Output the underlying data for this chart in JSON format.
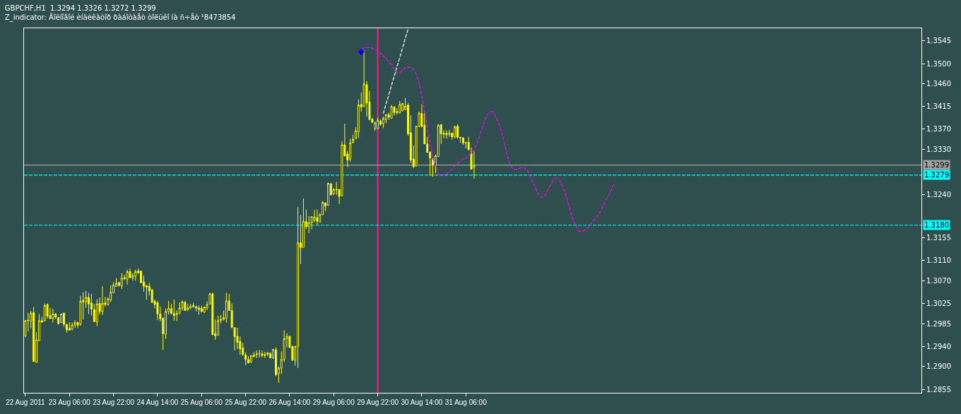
{
  "chart_data": {
    "type": "candlestick",
    "title": "GBPCHF,H1  1.3294 1.3326 1.3272 1.3299",
    "subtitle": "Z_indicator: Âîëíîâîé èíäèêàòîð ðàáîòàåò òîëüêî íà ñ÷åò ¹8473854",
    "categories": [
      "22 Aug 2011",
      null,
      null,
      null,
      null,
      null,
      null,
      null,
      null,
      null,
      null,
      null,
      null,
      null,
      null,
      null,
      "23 Aug 06:00",
      null,
      null,
      null,
      null,
      null,
      null,
      null,
      null,
      null,
      null,
      null,
      null,
      null,
      null,
      null,
      "23 Aug 22:00",
      null,
      null,
      null,
      null,
      null,
      null,
      null,
      null,
      null,
      null,
      null,
      null,
      null,
      null,
      null,
      "24 Aug 14:00",
      null,
      null,
      null,
      null,
      null,
      null,
      null,
      null,
      null,
      null,
      null,
      null,
      null,
      null,
      null,
      "25 Aug 06:00",
      null,
      null,
      null,
      null,
      null,
      null,
      null,
      null,
      null,
      null,
      null,
      null,
      null,
      null,
      null,
      "25 Aug 22:00",
      null,
      null,
      null,
      null,
      null,
      null,
      null,
      null,
      null,
      null,
      null,
      null,
      null,
      null,
      null,
      "26 Aug 14:00",
      null,
      null,
      null,
      null,
      null,
      null,
      null,
      null,
      null,
      null,
      null,
      null,
      null,
      null,
      null,
      "29 Aug 06:00",
      null,
      null,
      null,
      null,
      null,
      null,
      null,
      null,
      null,
      null,
      null,
      null,
      null,
      null,
      null,
      "29 Aug 22:00",
      null,
      null,
      null,
      null,
      null,
      null,
      null,
      null,
      null,
      null,
      null,
      null,
      null,
      null,
      null,
      "30 Aug 14:00",
      null,
      null,
      null,
      null,
      null,
      null,
      null,
      null,
      null,
      null,
      null,
      null,
      null,
      null,
      null,
      "31 Aug 06:00",
      null,
      null,
      null,
      null,
      null,
      null,
      null,
      null,
      null,
      null,
      null,
      null,
      null,
      null,
      null,
      null,
      null,
      null,
      null,
      null,
      null,
      null,
      null,
      null,
      null,
      null,
      null,
      null,
      null,
      null,
      null,
      null,
      null,
      null,
      null,
      null,
      null,
      null,
      null,
      null,
      null,
      null,
      null,
      null,
      null,
      null,
      null,
      null,
      null,
      null,
      null,
      null,
      null,
      null,
      null,
      null,
      null,
      null,
      null,
      null,
      null,
      null,
      null,
      null,
      null,
      null,
      null,
      null,
      null,
      null,
      null,
      null,
      null,
      null,
      null,
      null,
      null,
      null,
      null,
      null,
      null,
      null,
      null,
      null,
      null,
      null,
      null,
      null,
      null,
      null,
      null,
      null,
      null,
      null,
      null,
      null,
      null,
      null,
      null,
      null,
      null,
      null,
      null,
      null,
      null,
      null,
      null,
      null,
      null,
      null,
      null,
      null,
      null,
      null,
      null,
      null,
      null,
      null,
      null,
      null,
      null,
      null,
      null,
      null,
      null,
      null,
      null,
      null,
      null,
      null,
      null,
      null,
      null,
      null,
      null,
      null,
      null,
      null,
      null,
      null,
      null,
      null,
      null,
      null,
      null,
      null,
      null,
      null,
      null,
      null,
      null,
      null,
      null,
      null,
      null,
      null,
      null,
      null,
      null,
      null,
      null,
      null,
      null,
      null,
      null
    ],
    "ohlc": [
      [
        1.2961,
        1.2992,
        1.2958,
        1.2991
      ],
      [
        1.2992,
        1.3006,
        1.297,
        1.2991
      ],
      [
        1.299,
        1.301,
        1.2976,
        1.3006
      ],
      [
        1.3007,
        1.3018,
        1.291,
        1.291
      ],
      [
        1.2908,
        1.2968,
        1.2908,
        1.2953
      ],
      [
        1.2951,
        1.3004,
        1.2951,
        1.2991
      ],
      [
        1.2991,
        1.2998,
        1.2987,
        1.2988
      ],
      [
        1.2991,
        1.3025,
        1.2989,
        1.3021
      ],
      [
        1.3023,
        1.3025,
        1.2995,
        1.3
      ],
      [
        1.3001,
        1.3016,
        1.2995,
        1.2995
      ],
      [
        1.2995,
        1.3015,
        1.2987,
        1.3004
      ],
      [
        1.3004,
        1.3006,
        1.2994,
        1.2998
      ],
      [
        1.2997,
        1.2998,
        1.2983,
        1.2985
      ],
      [
        1.2987,
        1.3005,
        1.2987,
        1.3004
      ],
      [
        1.3006,
        1.3006,
        1.2979,
        1.2984
      ],
      [
        1.2983,
        1.2985,
        1.2967,
        1.2973
      ],
      [
        1.2976,
        1.2988,
        1.2972,
        1.2972
      ],
      [
        1.2974,
        1.2987,
        1.2972,
        1.2982
      ],
      [
        1.2982,
        1.2992,
        1.2977,
        1.2987
      ],
      [
        1.2987,
        1.2989,
        1.2976,
        1.2982
      ],
      [
        1.2984,
        1.304,
        1.2981,
        1.3029
      ],
      [
        1.3031,
        1.3047,
        1.2993,
        1.3028
      ],
      [
        1.3028,
        1.305,
        1.3016,
        1.3037
      ],
      [
        1.3037,
        1.3046,
        1.3004,
        1.3024
      ],
      [
        1.3026,
        1.3044,
        1.3001,
        1.3014
      ],
      [
        1.3013,
        1.3024,
        1.2989,
        1.2989
      ],
      [
        1.2988,
        1.3033,
        1.298,
        1.3024
      ],
      [
        1.3025,
        1.3037,
        1.3003,
        1.3009
      ],
      [
        1.3009,
        1.3059,
        1.3002,
        1.3025
      ],
      [
        1.3026,
        1.3038,
        1.3019,
        1.3023
      ],
      [
        1.3022,
        1.3037,
        1.3022,
        1.3034
      ],
      [
        1.3032,
        1.3061,
        1.3028,
        1.3047
      ],
      [
        1.3046,
        1.3067,
        1.3046,
        1.3061
      ],
      [
        1.3059,
        1.3075,
        1.3058,
        1.3065
      ],
      [
        1.3066,
        1.3068,
        1.3058,
        1.3061
      ],
      [
        1.306,
        1.3085,
        1.3054,
        1.3075
      ],
      [
        1.3076,
        1.3082,
        1.3071,
        1.3074
      ],
      [
        1.3073,
        1.3092,
        1.3062,
        1.3088
      ],
      [
        1.3088,
        1.3094,
        1.3075,
        1.3076
      ],
      [
        1.3075,
        1.3085,
        1.307,
        1.308
      ],
      [
        1.3079,
        1.3092,
        1.307,
        1.3088
      ],
      [
        1.3089,
        1.3094,
        1.3083,
        1.3086
      ],
      [
        1.3089,
        1.3089,
        1.3065,
        1.3066
      ],
      [
        1.3068,
        1.308,
        1.3048,
        1.3059
      ],
      [
        1.306,
        1.3062,
        1.3032,
        1.3057
      ],
      [
        1.3059,
        1.3066,
        1.3041,
        1.305
      ],
      [
        1.3052,
        1.3054,
        1.3027,
        1.3027
      ],
      [
        1.3029,
        1.3033,
        1.3015,
        1.3023
      ],
      [
        1.3026,
        1.303,
        1.2992,
        1.3004
      ],
      [
        1.3004,
        1.3019,
        1.2989,
        1.2995
      ],
      [
        1.2996,
        1.2996,
        1.2933,
        1.2965
      ],
      [
        1.2964,
        1.3015,
        1.2955,
        1.3009
      ],
      [
        1.3009,
        1.303,
        1.3003,
        1.3015
      ],
      [
        1.3015,
        1.3024,
        1.3004,
        1.3005
      ],
      [
        1.3005,
        1.3033,
        1.2991,
        1.3001
      ],
      [
        1.3003,
        1.3011,
        1.299,
        1.3005
      ],
      [
        1.3005,
        1.3027,
        1.3004,
        1.3016
      ],
      [
        1.3016,
        1.3031,
        1.3011,
        1.3028
      ],
      [
        1.3027,
        1.303,
        1.3011,
        1.3011
      ],
      [
        1.3013,
        1.3024,
        1.301,
        1.3016
      ],
      [
        1.3016,
        1.3024,
        1.3014,
        1.3019
      ],
      [
        1.3021,
        1.3026,
        1.3016,
        1.3019
      ],
      [
        1.3018,
        1.3021,
        1.3009,
        1.3016
      ],
      [
        1.3016,
        1.3021,
        1.3003,
        1.3013
      ],
      [
        1.3015,
        1.302,
        1.3007,
        1.3009
      ],
      [
        1.3008,
        1.3018,
        1.3006,
        1.3018
      ],
      [
        1.3016,
        1.3029,
        1.3012,
        1.3023
      ],
      [
        1.3024,
        1.3046,
        1.3023,
        1.3044
      ],
      [
        1.3044,
        1.3047,
        1.2963,
        1.2963
      ],
      [
        1.2965,
        1.2993,
        1.2953,
        1.2961
      ],
      [
        1.2962,
        1.3001,
        1.2962,
        1.2991
      ],
      [
        1.2993,
        1.3002,
        1.2986,
        1.2992
      ],
      [
        1.2993,
        1.3011,
        1.2991,
        1.2997
      ],
      [
        1.2996,
        1.3046,
        1.2987,
        1.303
      ],
      [
        1.303,
        1.3044,
        1.3011,
        1.3011
      ],
      [
        1.3011,
        1.3025,
        1.2977,
        1.2977
      ],
      [
        1.2977,
        1.2977,
        1.2932,
        1.2959
      ],
      [
        1.296,
        1.2977,
        1.2935,
        1.2948
      ],
      [
        1.295,
        1.296,
        1.2923,
        1.2935
      ],
      [
        1.2937,
        1.2947,
        1.2921,
        1.2924
      ],
      [
        1.2923,
        1.2928,
        1.2903,
        1.2914
      ],
      [
        1.2914,
        1.2921,
        1.2907,
        1.2907
      ],
      [
        1.2909,
        1.2922,
        1.2907,
        1.2922
      ],
      [
        1.292,
        1.2929,
        1.2918,
        1.2923
      ],
      [
        1.2925,
        1.2932,
        1.2917,
        1.2924
      ],
      [
        1.2925,
        1.2933,
        1.2918,
        1.2926
      ],
      [
        1.2925,
        1.2932,
        1.2918,
        1.2922
      ],
      [
        1.2924,
        1.2929,
        1.2917,
        1.2922
      ],
      [
        1.2924,
        1.2929,
        1.292,
        1.2927
      ],
      [
        1.2926,
        1.2928,
        1.2917,
        1.2917
      ],
      [
        1.2917,
        1.2934,
        1.2915,
        1.2934
      ],
      [
        1.2933,
        1.2938,
        1.2881,
        1.2884
      ],
      [
        1.2886,
        1.29,
        1.2868,
        1.2897
      ],
      [
        1.2897,
        1.293,
        1.2885,
        1.2914
      ],
      [
        1.2914,
        1.2972,
        1.2909,
        1.2955
      ],
      [
        1.2955,
        1.2966,
        1.2938,
        1.296
      ],
      [
        1.296,
        1.2961,
        1.2936,
        1.2938
      ],
      [
        1.294,
        1.2941,
        1.2911,
        1.2913
      ],
      [
        1.2912,
        1.294,
        1.2902,
        1.294
      ],
      [
        1.294,
        1.3216,
        1.2897,
        1.3145
      ],
      [
        1.3145,
        1.32,
        1.3103,
        1.3136
      ],
      [
        1.3136,
        1.3233,
        1.3136,
        1.3188
      ],
      [
        1.3187,
        1.3211,
        1.3172,
        1.3177
      ],
      [
        1.3177,
        1.3198,
        1.3164,
        1.3185
      ],
      [
        1.3185,
        1.3197,
        1.3172,
        1.3197
      ],
      [
        1.319,
        1.321,
        1.3186,
        1.3196
      ],
      [
        1.3195,
        1.3211,
        1.3181,
        1.3188
      ],
      [
        1.3186,
        1.3204,
        1.3185,
        1.3201
      ],
      [
        1.3201,
        1.3228,
        1.32,
        1.3225
      ],
      [
        1.3224,
        1.3225,
        1.3208,
        1.3218
      ],
      [
        1.3219,
        1.3264,
        1.3219,
        1.3263
      ],
      [
        1.3262,
        1.3263,
        1.324,
        1.324
      ],
      [
        1.3242,
        1.3253,
        1.324,
        1.3251
      ],
      [
        1.3251,
        1.3266,
        1.324,
        1.325
      ],
      [
        1.3251,
        1.3251,
        1.3222,
        1.3237
      ],
      [
        1.3238,
        1.3346,
        1.3238,
        1.3339
      ],
      [
        1.3339,
        1.3381,
        1.3317,
        1.3317
      ],
      [
        1.3321,
        1.3327,
        1.3295,
        1.3309
      ],
      [
        1.3311,
        1.3351,
        1.3306,
        1.3343
      ],
      [
        1.3344,
        1.3359,
        1.3342,
        1.335
      ],
      [
        1.3351,
        1.3374,
        1.3351,
        1.3367
      ],
      [
        1.3365,
        1.3429,
        1.3353,
        1.3418
      ],
      [
        1.3419,
        1.3443,
        1.3405,
        1.3414
      ],
      [
        1.3415,
        1.3526,
        1.3415,
        1.346
      ],
      [
        1.3458,
        1.3465,
        1.3395,
        1.3422
      ],
      [
        1.3424,
        1.3446,
        1.3389,
        1.3389
      ],
      [
        1.339,
        1.3393,
        1.3382,
        1.3384
      ],
      [
        1.3371,
        1.3385,
        1.3367,
        1.3383
      ],
      [
        1.3371,
        1.3393,
        1.3371,
        1.3388
      ],
      [
        1.3386,
        1.3389,
        1.3377,
        1.338
      ],
      [
        1.3381,
        1.3395,
        1.3372,
        1.3391
      ],
      [
        1.3389,
        1.3399,
        1.3382,
        1.3399
      ],
      [
        1.3399,
        1.3403,
        1.3389,
        1.3394
      ],
      [
        1.3392,
        1.3418,
        1.3392,
        1.3415
      ],
      [
        1.3414,
        1.3416,
        1.3397,
        1.3403
      ],
      [
        1.3405,
        1.3412,
        1.3399,
        1.3403
      ],
      [
        1.3403,
        1.3426,
        1.3401,
        1.3419
      ],
      [
        1.3407,
        1.3422,
        1.3405,
        1.3421
      ],
      [
        1.3409,
        1.3432,
        1.3408,
        1.3416
      ],
      [
        1.3418,
        1.3422,
        1.3357,
        1.3361
      ],
      [
        1.3363,
        1.3398,
        1.3303,
        1.3309
      ],
      [
        1.3311,
        1.3338,
        1.3293,
        1.3296
      ],
      [
        1.3297,
        1.3376,
        1.3297,
        1.3376
      ],
      [
        1.3376,
        1.3405,
        1.3374,
        1.3402
      ],
      [
        1.3401,
        1.342,
        1.3374,
        1.3375
      ],
      [
        1.3378,
        1.3403,
        1.3341,
        1.3341
      ],
      [
        1.3341,
        1.3355,
        1.3324,
        1.3324
      ],
      [
        1.3325,
        1.3325,
        1.3278,
        1.3313
      ],
      [
        1.3309,
        1.3313,
        1.3276,
        1.3299
      ],
      [
        1.3298,
        1.332,
        1.3283,
        1.3317
      ],
      [
        1.3316,
        1.338,
        1.3316,
        1.3378
      ],
      [
        1.3379,
        1.338,
        1.3341,
        1.3361
      ],
      [
        1.3362,
        1.3368,
        1.3352,
        1.336
      ],
      [
        1.3362,
        1.3368,
        1.3351,
        1.3359
      ],
      [
        1.336,
        1.3369,
        1.3355,
        1.3362
      ],
      [
        1.3362,
        1.3364,
        1.3349,
        1.3355
      ],
      [
        1.3355,
        1.3377,
        1.3352,
        1.3375
      ],
      [
        1.3376,
        1.338,
        1.3351,
        1.3354
      ],
      [
        1.3354,
        1.3355,
        1.3343,
        1.3353
      ],
      [
        1.3353,
        1.3354,
        1.3339,
        1.3343
      ],
      [
        1.3344,
        1.3344,
        1.3332,
        1.3343
      ],
      [
        1.3344,
        1.3355,
        1.3328,
        1.333
      ],
      [
        1.3322,
        1.3334,
        1.329,
        1.3291
      ],
      [
        1.3294,
        1.3326,
        1.3272,
        1.3299
      ],
      null,
      null,
      null,
      null,
      null,
      null,
      null,
      null,
      null,
      null,
      null,
      null,
      null,
      null,
      null,
      null,
      null,
      null,
      null,
      null,
      null,
      null,
      null,
      null,
      null,
      null,
      null,
      null,
      null,
      null,
      null,
      null,
      null,
      null,
      null,
      null,
      null,
      null,
      null,
      null,
      null,
      null,
      null,
      null,
      null,
      null,
      null,
      null,
      null,
      null,
      null,
      null,
      null,
      null,
      null,
      null,
      null,
      null,
      null,
      null,
      null,
      null,
      null,
      null,
      null,
      null,
      null,
      null,
      null,
      null,
      null,
      null,
      null,
      null,
      null,
      null,
      null,
      null,
      null,
      null,
      null,
      null,
      null,
      null,
      null,
      null,
      null,
      null,
      null,
      null,
      null,
      null,
      null,
      null,
      null,
      null,
      null,
      null,
      null,
      null,
      null,
      null,
      null,
      null,
      null,
      null,
      null,
      null,
      null,
      null,
      null,
      null,
      null,
      null,
      null,
      null,
      null,
      null,
      null,
      null,
      null,
      null,
      null,
      null,
      null,
      null,
      null,
      null,
      null,
      null,
      null,
      null,
      null,
      null,
      null,
      null,
      null,
      null,
      null,
      null,
      null,
      null,
      null,
      null,
      null,
      null,
      null,
      null,
      null,
      null,
      null,
      null,
      null,
      null,
      null,
      null,
      null,
      null,
      null,
      null,
      null,
      null
    ],
    "color": "#ffff00",
    "ylim": [
      1.2848,
      1.357
    ],
    "yticks": [
      1.2855,
      {
        "value": 1.29,
        "label": "1.2900"
      },
      {
        "value": 1.294,
        "label": "1.2940"
      },
      1.2985,
      1.3025,
      {
        "value": 1.307,
        "label": "1.3070"
      },
      {
        "value": 1.311,
        "label": "1.3110"
      },
      1.3155,
      {
        "value": 1.324,
        "label": "1.3240"
      },
      {
        "value": 1.333,
        "label": "1.3330"
      },
      {
        "value": 1.337,
        "label": "1.3370"
      },
      1.3415,
      {
        "value": 1.346,
        "label": "1.3460"
      },
      {
        "value": 1.35,
        "label": "1.3500"
      },
      1.3545
    ],
    "grid": false,
    "series": [
      {
        "type": "line",
        "color": "#ff00ff",
        "line_style": "dashed",
        "values": [
          null,
          null,
          null,
          null,
          null,
          null,
          null,
          null,
          null,
          null,
          null,
          null,
          null,
          null,
          null,
          null,
          null,
          null,
          null,
          null,
          null,
          null,
          null,
          null,
          null,
          null,
          null,
          null,
          null,
          null,
          null,
          null,
          null,
          null,
          null,
          null,
          null,
          null,
          null,
          null,
          null,
          null,
          null,
          null,
          null,
          null,
          null,
          null,
          null,
          null,
          null,
          null,
          null,
          null,
          null,
          null,
          null,
          null,
          null,
          null,
          null,
          null,
          null,
          null,
          null,
          null,
          null,
          null,
          null,
          null,
          null,
          null,
          null,
          null,
          null,
          null,
          null,
          null,
          null,
          null,
          null,
          null,
          null,
          null,
          null,
          null,
          null,
          null,
          null,
          null,
          null,
          null,
          null,
          null,
          null,
          null,
          null,
          null,
          null,
          null,
          null,
          null,
          null,
          null,
          null,
          null,
          null,
          null,
          null,
          null,
          null,
          null,
          null,
          null,
          null,
          null,
          null,
          null,
          null,
          null,
          null,
          null,
          1.3528,
          1.3531,
          1.3532,
          1.3532,
          1.3531,
          1.3528,
          1.3526,
          1.3521,
          1.3515,
          1.351,
          1.3504,
          1.3497,
          1.3488,
          1.3482,
          1.3482,
          1.3487,
          1.3492,
          1.3493,
          1.3493,
          1.3489,
          1.3479,
          1.3462,
          1.3437,
          1.3405,
          1.3374,
          1.3342,
          1.3316,
          1.3295,
          1.3282,
          1.3278,
          1.328,
          1.3282,
          1.3286,
          1.3292,
          1.3297,
          1.3302,
          1.3307,
          1.3311,
          1.3312,
          1.3318,
          1.3323,
          1.3329,
          1.3342,
          1.3357,
          1.3374,
          1.3389,
          1.3399,
          1.3405,
          1.3404,
          1.3394,
          1.3382,
          1.3363,
          1.3342,
          1.3319,
          1.3301,
          1.3292,
          1.329,
          1.3291,
          1.3294,
          1.3294,
          1.3291,
          1.3282,
          1.3269,
          1.3258,
          1.3245,
          1.3236,
          1.3235,
          1.3241,
          1.3252,
          1.3262,
          1.3271,
          1.3273,
          1.3269,
          1.3258,
          1.3245,
          1.3227,
          1.3208,
          1.3189,
          1.3179,
          1.3168,
          1.3168,
          1.3169,
          1.3173,
          1.3179,
          1.3187,
          1.3192,
          1.3199,
          1.3208,
          1.322,
          1.3231,
          1.3239,
          1.3253,
          1.3264,
          null,
          null,
          null,
          null,
          null,
          null,
          null,
          null,
          null,
          null,
          null,
          null,
          null,
          null,
          null,
          null,
          null,
          null,
          null,
          null,
          null,
          null,
          null,
          null,
          null,
          null,
          null,
          null,
          null,
          null,
          null,
          null,
          null,
          null,
          null,
          null,
          null,
          null,
          null,
          null,
          null,
          null,
          null,
          null,
          null,
          null,
          null,
          null,
          null,
          null,
          null,
          null,
          null,
          null,
          null,
          null,
          null,
          null,
          null,
          null,
          null,
          null,
          null,
          null,
          null,
          null,
          null,
          null,
          null,
          null,
          null,
          null,
          null,
          null,
          null,
          null,
          null,
          null,
          null,
          null,
          null,
          null,
          null,
          null,
          null,
          null,
          null,
          null,
          null,
          null,
          null,
          null,
          null,
          null,
          null,
          null,
          null,
          null,
          null,
          null,
          null,
          null,
          null,
          null,
          null,
          null,
          null,
          null,
          null,
          null,
          null
        ]
      },
      {
        "type": "line",
        "color": "#ffffff",
        "line_style": "dashed",
        "values": [
          null,
          null,
          null,
          null,
          null,
          null,
          null,
          null,
          null,
          null,
          null,
          null,
          null,
          null,
          null,
          null,
          null,
          null,
          null,
          null,
          null,
          null,
          null,
          null,
          null,
          null,
          null,
          null,
          null,
          null,
          null,
          null,
          null,
          null,
          null,
          null,
          null,
          null,
          null,
          null,
          null,
          null,
          null,
          null,
          null,
          null,
          null,
          null,
          null,
          null,
          null,
          null,
          null,
          null,
          null,
          null,
          null,
          null,
          null,
          null,
          null,
          null,
          null,
          null,
          null,
          null,
          null,
          null,
          null,
          null,
          null,
          null,
          null,
          null,
          null,
          null,
          null,
          null,
          null,
          null,
          null,
          null,
          null,
          null,
          null,
          null,
          null,
          null,
          null,
          null,
          null,
          null,
          null,
          null,
          null,
          null,
          null,
          null,
          null,
          null,
          null,
          null,
          null,
          null,
          null,
          null,
          null,
          null,
          null,
          null,
          null,
          null,
          null,
          null,
          null,
          null,
          null,
          null,
          null,
          null,
          null,
          null,
          null,
          null,
          null,
          null,
          null,
          null,
          null,
          null,
          1.3401,
          1.342,
          1.3438,
          1.3457,
          1.3475,
          1.3494,
          1.3512,
          1.3531,
          1.355,
          1.3568,
          null,
          null,
          null,
          null,
          null,
          null,
          null,
          null,
          null,
          null,
          null,
          null,
          null,
          null,
          null,
          null,
          null,
          null,
          null,
          null,
          null,
          null,
          null,
          null,
          null,
          null,
          null,
          null,
          null,
          null,
          null,
          null,
          null,
          null,
          null,
          null,
          null,
          null,
          null,
          null,
          null,
          null,
          null,
          null,
          null,
          null,
          null,
          null,
          null,
          null,
          null,
          null,
          null,
          null,
          null,
          null,
          null,
          null,
          null,
          null,
          null,
          null,
          null,
          null,
          null,
          null,
          null,
          null,
          null,
          null,
          null,
          null,
          null,
          null,
          null,
          null,
          null,
          null,
          null,
          null,
          null,
          null,
          null,
          null,
          null,
          null,
          null,
          null,
          null,
          null,
          null,
          null,
          null,
          null,
          null,
          null,
          null,
          null,
          null,
          null,
          null,
          null,
          null,
          null,
          null,
          null,
          null,
          null,
          null,
          null,
          null,
          null,
          null,
          null,
          null,
          null,
          null,
          null,
          null,
          null,
          null,
          null,
          null,
          null,
          null,
          null,
          null,
          null,
          null,
          null,
          null,
          null,
          null,
          null,
          null,
          null,
          null,
          null,
          null,
          null,
          null,
          null,
          null,
          null,
          null,
          null,
          null,
          null,
          null,
          null,
          null,
          null,
          null,
          null,
          null,
          null,
          null,
          null,
          null,
          null,
          null,
          null,
          null,
          null,
          null,
          null,
          null,
          null,
          null,
          null,
          null,
          null,
          null,
          null,
          null,
          null,
          null,
          null,
          null,
          null,
          null,
          null,
          null,
          null,
          null,
          null
        ]
      },
      {
        "type": "scatter",
        "color": "#0000ff",
        "marker": "diamond",
        "values": [
          null,
          null,
          null,
          null,
          null,
          null,
          null,
          null,
          null,
          null,
          null,
          null,
          null,
          null,
          null,
          null,
          null,
          null,
          null,
          null,
          null,
          null,
          null,
          null,
          null,
          null,
          null,
          null,
          null,
          null,
          null,
          null,
          null,
          null,
          null,
          null,
          null,
          null,
          null,
          null,
          null,
          null,
          null,
          null,
          null,
          null,
          null,
          null,
          null,
          null,
          null,
          null,
          null,
          null,
          null,
          null,
          null,
          null,
          null,
          null,
          null,
          null,
          null,
          null,
          null,
          null,
          null,
          null,
          null,
          null,
          null,
          null,
          null,
          null,
          null,
          null,
          null,
          null,
          null,
          null,
          null,
          null,
          null,
          null,
          null,
          null,
          null,
          null,
          null,
          null,
          null,
          null,
          null,
          null,
          null,
          null,
          null,
          null,
          null,
          null,
          null,
          null,
          null,
          null,
          null,
          null,
          null,
          null,
          null,
          null,
          null,
          null,
          null,
          null,
          null,
          null,
          null,
          null,
          null,
          null,
          null,
          null,
          1.3523,
          null,
          null,
          null,
          null,
          null,
          null,
          null,
          null,
          null,
          null,
          null,
          null,
          null,
          null,
          null,
          null,
          null,
          null,
          null,
          null,
          null,
          null,
          null,
          null,
          null,
          null,
          null,
          null,
          null,
          null,
          null,
          null,
          null,
          null,
          null,
          null,
          null,
          null,
          null,
          null,
          null,
          null,
          null,
          null,
          null,
          null,
          null,
          null,
          null,
          null,
          null,
          null,
          null,
          null,
          null,
          null,
          null,
          null,
          null,
          null,
          null,
          null,
          null,
          null,
          null,
          null,
          null,
          null,
          null,
          null,
          null,
          null,
          null,
          null,
          null,
          null,
          null,
          null,
          null,
          null,
          null,
          null,
          null,
          null,
          null,
          null,
          null,
          null,
          null,
          null,
          null,
          null,
          null,
          null,
          null,
          null,
          null,
          null,
          null,
          null,
          null,
          null,
          null,
          null,
          null,
          null,
          null,
          null,
          null,
          null,
          null,
          null,
          null,
          null,
          null,
          null,
          null,
          null,
          null,
          null,
          null,
          null,
          null,
          null,
          null,
          null,
          null,
          null,
          null,
          null,
          null,
          null,
          null,
          null,
          null,
          null,
          null,
          null,
          null,
          null,
          null,
          null,
          null,
          null,
          null,
          null,
          null,
          null,
          null,
          null,
          null,
          null,
          null,
          null,
          null,
          null,
          null,
          null,
          null,
          null,
          null,
          null,
          null,
          null,
          null,
          null,
          null,
          null,
          null,
          null,
          null,
          null,
          null,
          null,
          null,
          null,
          null,
          null,
          null,
          null,
          null,
          null,
          null,
          null,
          null,
          null,
          null,
          null,
          null,
          null,
          null,
          null,
          null,
          null,
          null,
          null,
          null,
          null,
          null,
          null,
          null,
          null,
          null
        ]
      }
    ],
    "ref_lines": [
      {
        "axis": "x",
        "value": "29 Aug 22:00",
        "color": "#ff1493",
        "line_style": "solid"
      },
      {
        "axis": "y",
        "value": 1.3299,
        "label": "1.3299",
        "color": "#a0a0a0",
        "line_style": "solid"
      },
      {
        "axis": "y",
        "value": 1.3279,
        "label": "1.3279",
        "color": "#00ffff",
        "line_style": "dashed"
      },
      {
        "axis": "y",
        "value": 1.318,
        "label": "1.3180",
        "color": "#00ffff",
        "line_style": "dashed"
      }
    ]
  }
}
